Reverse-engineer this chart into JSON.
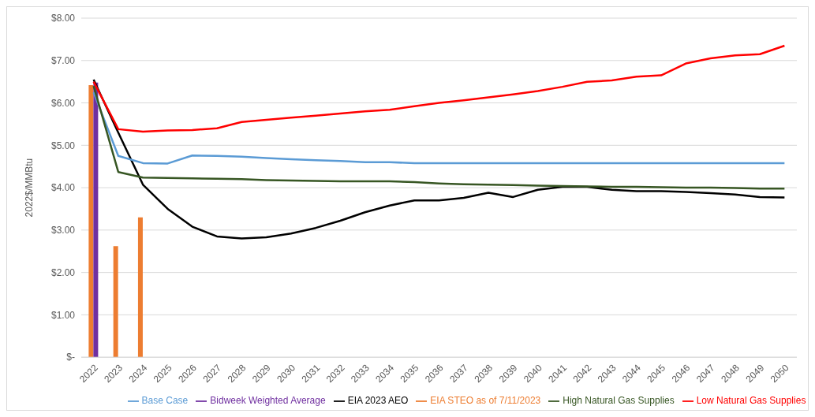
{
  "chart_data": {
    "type": "line",
    "ylabel": "2022$/MMBtu",
    "categories": [
      "2022",
      "2023",
      "2024",
      "2025",
      "2026",
      "2027",
      "2028",
      "2029",
      "2030",
      "2031",
      "2032",
      "2033",
      "2034",
      "2035",
      "2036",
      "2037",
      "2038",
      "2039",
      "2040",
      "2041",
      "2042",
      "2043",
      "2044",
      "2045",
      "2046",
      "2047",
      "2048",
      "2049",
      "2050"
    ],
    "series": [
      {
        "name": "EIA STEO as of 7/11/2023",
        "type": "bar",
        "color": "#ed7d31",
        "values": [
          6.42,
          2.62,
          3.3,
          null,
          null,
          null,
          null,
          null,
          null,
          null,
          null,
          null,
          null,
          null,
          null,
          null,
          null,
          null,
          null,
          null,
          null,
          null,
          null,
          null,
          null,
          null,
          null,
          null,
          null
        ]
      },
      {
        "name": "Bidweek Weighted Average",
        "type": "bar",
        "color": "#7030a0",
        "values": [
          6.48,
          null,
          null,
          null,
          null,
          null,
          null,
          null,
          null,
          null,
          null,
          null,
          null,
          null,
          null,
          null,
          null,
          null,
          null,
          null,
          null,
          null,
          null,
          null,
          null,
          null,
          null,
          null,
          null
        ]
      },
      {
        "name": "EIA 2023 AEO",
        "color": "#000000",
        "values": [
          6.55,
          5.3,
          4.07,
          3.5,
          3.08,
          2.85,
          2.8,
          2.83,
          2.92,
          3.05,
          3.22,
          3.42,
          3.58,
          3.7,
          3.7,
          3.76,
          3.88,
          3.78,
          3.95,
          4.02,
          4.02,
          3.95,
          3.92,
          3.92,
          3.9,
          3.87,
          3.84,
          3.78,
          3.77
        ]
      },
      {
        "name": "Base Case",
        "color": "#5b9bd5",
        "values": [
          6.25,
          4.75,
          4.58,
          4.57,
          4.76,
          4.75,
          4.73,
          4.7,
          4.67,
          4.65,
          4.63,
          4.6,
          4.6,
          4.58,
          4.58,
          4.58,
          4.58,
          4.58,
          4.58,
          4.58,
          4.58,
          4.58,
          4.58,
          4.58,
          4.58,
          4.58,
          4.58,
          4.58,
          4.58
        ]
      },
      {
        "name": "High Natural Gas Supplies",
        "color": "#375623",
        "values": [
          6.4,
          4.37,
          4.24,
          4.23,
          4.22,
          4.21,
          4.2,
          4.18,
          4.17,
          4.16,
          4.15,
          4.15,
          4.15,
          4.13,
          4.1,
          4.08,
          4.07,
          4.06,
          4.05,
          4.04,
          4.03,
          4.02,
          4.02,
          4.01,
          4.0,
          4.0,
          3.99,
          3.98,
          3.98
        ]
      },
      {
        "name": "Low Natural Gas Supplies",
        "color": "#ff0000",
        "values": [
          6.5,
          5.38,
          5.32,
          5.35,
          5.36,
          5.4,
          5.55,
          5.6,
          5.65,
          5.7,
          5.75,
          5.8,
          5.84,
          5.92,
          6.0,
          6.06,
          6.13,
          6.2,
          6.28,
          6.38,
          6.5,
          6.53,
          6.62,
          6.65,
          6.93,
          7.05,
          7.12,
          7.15,
          7.35
        ]
      }
    ],
    "ylim": [
      0,
      8
    ],
    "yticks": [
      {
        "value": 0,
        "label": "$-"
      },
      {
        "value": 1,
        "label": "$1.00"
      },
      {
        "value": 2,
        "label": "$2.00"
      },
      {
        "value": 3,
        "label": "$3.00"
      },
      {
        "value": 4,
        "label": "$4.00"
      },
      {
        "value": 5,
        "label": "$5.00"
      },
      {
        "value": 6,
        "label": "$6.00"
      },
      {
        "value": 7,
        "label": "$7.00"
      },
      {
        "value": 8,
        "label": "$8.00"
      }
    ],
    "grid": "y",
    "legend": "bottom",
    "marker": "none",
    "line_style": "solid"
  }
}
